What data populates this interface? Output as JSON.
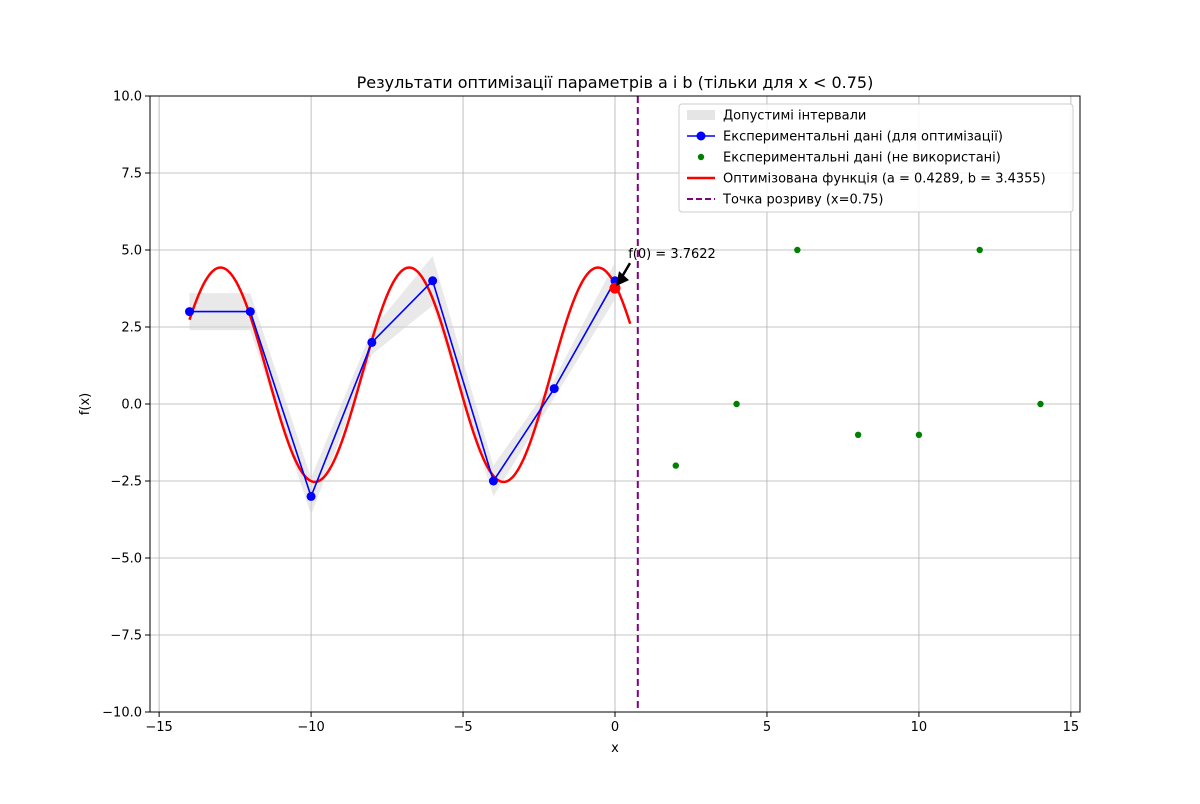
{
  "chart_data": {
    "type": "line",
    "title": "Результати оптимізації параметрів a і b (тільки для x < 0.75)",
    "xlabel": "x",
    "ylabel": "f(x)",
    "xlim": [
      -15.3,
      15.3
    ],
    "ylim": [
      -10,
      10
    ],
    "xticks": [
      -15,
      -10,
      -5,
      0,
      5,
      10,
      15
    ],
    "xtick_labels": [
      "−15",
      "−10",
      "−5",
      "0",
      "5",
      "10",
      "15"
    ],
    "yticks": [
      -10,
      -7.5,
      -5,
      -2.5,
      0,
      2.5,
      5,
      7.5,
      10
    ],
    "ytick_labels": [
      "−10.0",
      "−7.5",
      "−5.0",
      "−2.5",
      "0.0",
      "2.5",
      "5.0",
      "7.5",
      "10.0"
    ],
    "grid": true,
    "legend_position": "top-right",
    "series": [
      {
        "name": "Допустимі інтервали",
        "kind": "band",
        "color": "#d3d3d3",
        "x": [
          -14,
          -12,
          -10,
          -8,
          -6,
          -4,
          -2,
          0
        ],
        "lower": [
          2.4,
          2.4,
          -3.6,
          1.6,
          3.2,
          -3.0,
          0.2,
          3.4
        ],
        "upper": [
          3.6,
          3.6,
          -2.4,
          2.4,
          4.8,
          -2.0,
          0.8,
          4.6
        ]
      },
      {
        "name": "Експериментальні дані (для оптимізації)",
        "kind": "line-markers",
        "color": "#0000ff",
        "x": [
          -14,
          -12,
          -10,
          -8,
          -6,
          -4,
          -2,
          0
        ],
        "y": [
          3,
          3,
          -3,
          2,
          4,
          -2.5,
          0.5,
          4
        ]
      },
      {
        "name": "Експериментальні дані (не використані)",
        "kind": "scatter",
        "color": "#008000",
        "x": [
          2,
          4,
          6,
          8,
          10,
          12,
          14
        ],
        "y": [
          -2,
          0,
          5,
          -1,
          -1,
          5,
          0
        ]
      },
      {
        "name": "Оптимізована функція (a = 0.4289, b = 3.4355)",
        "kind": "function",
        "color": "#ff0000",
        "x_range": [
          -14,
          0.5
        ],
        "a": 0.4289,
        "b": 3.4355
      },
      {
        "name": "Точка розриву (x=0.75)",
        "kind": "vline",
        "color": "#800080",
        "x": 0.75
      }
    ],
    "annotation": {
      "text": "f(0) = 3.7622",
      "point": [
        0,
        3.7622
      ],
      "text_at": [
        0.5,
        4.8
      ]
    }
  }
}
